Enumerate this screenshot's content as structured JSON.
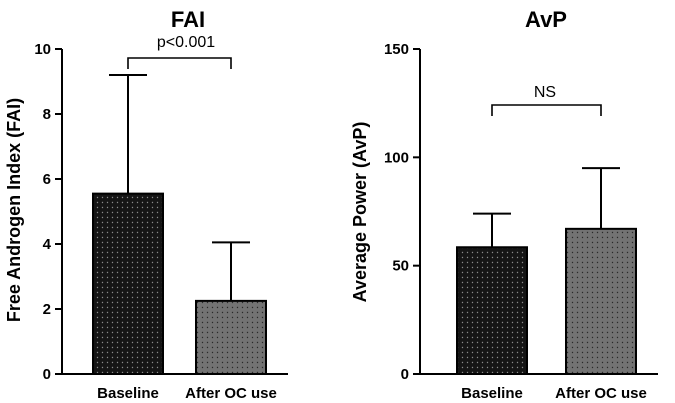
{
  "chart_data": [
    {
      "type": "bar",
      "title": "FAI",
      "ylabel": "Free Androgen Index (FAI)",
      "xlabel": "",
      "categories": [
        "Baseline",
        "After OC use"
      ],
      "values": [
        5.55,
        2.25
      ],
      "error_upper": [
        9.2,
        4.05
      ],
      "ylim": [
        0,
        10
      ],
      "yticks": [
        0,
        2,
        4,
        6,
        8,
        10
      ],
      "bar_colors": [
        "#1a1a1a",
        "#777777"
      ],
      "significance": {
        "label": "p<0.001",
        "between": [
          0,
          1
        ]
      }
    },
    {
      "type": "bar",
      "title": "AvP",
      "ylabel": "Average Power (AvP)",
      "xlabel": "",
      "categories": [
        "Baseline",
        "After OC use"
      ],
      "values": [
        58.5,
        67
      ],
      "error_upper": [
        74,
        95
      ],
      "ylim": [
        0,
        150
      ],
      "yticks": [
        0,
        50,
        100,
        150
      ],
      "bar_colors": [
        "#1a1a1a",
        "#777777"
      ],
      "significance": {
        "label": "NS",
        "between": [
          0,
          1
        ]
      }
    }
  ]
}
